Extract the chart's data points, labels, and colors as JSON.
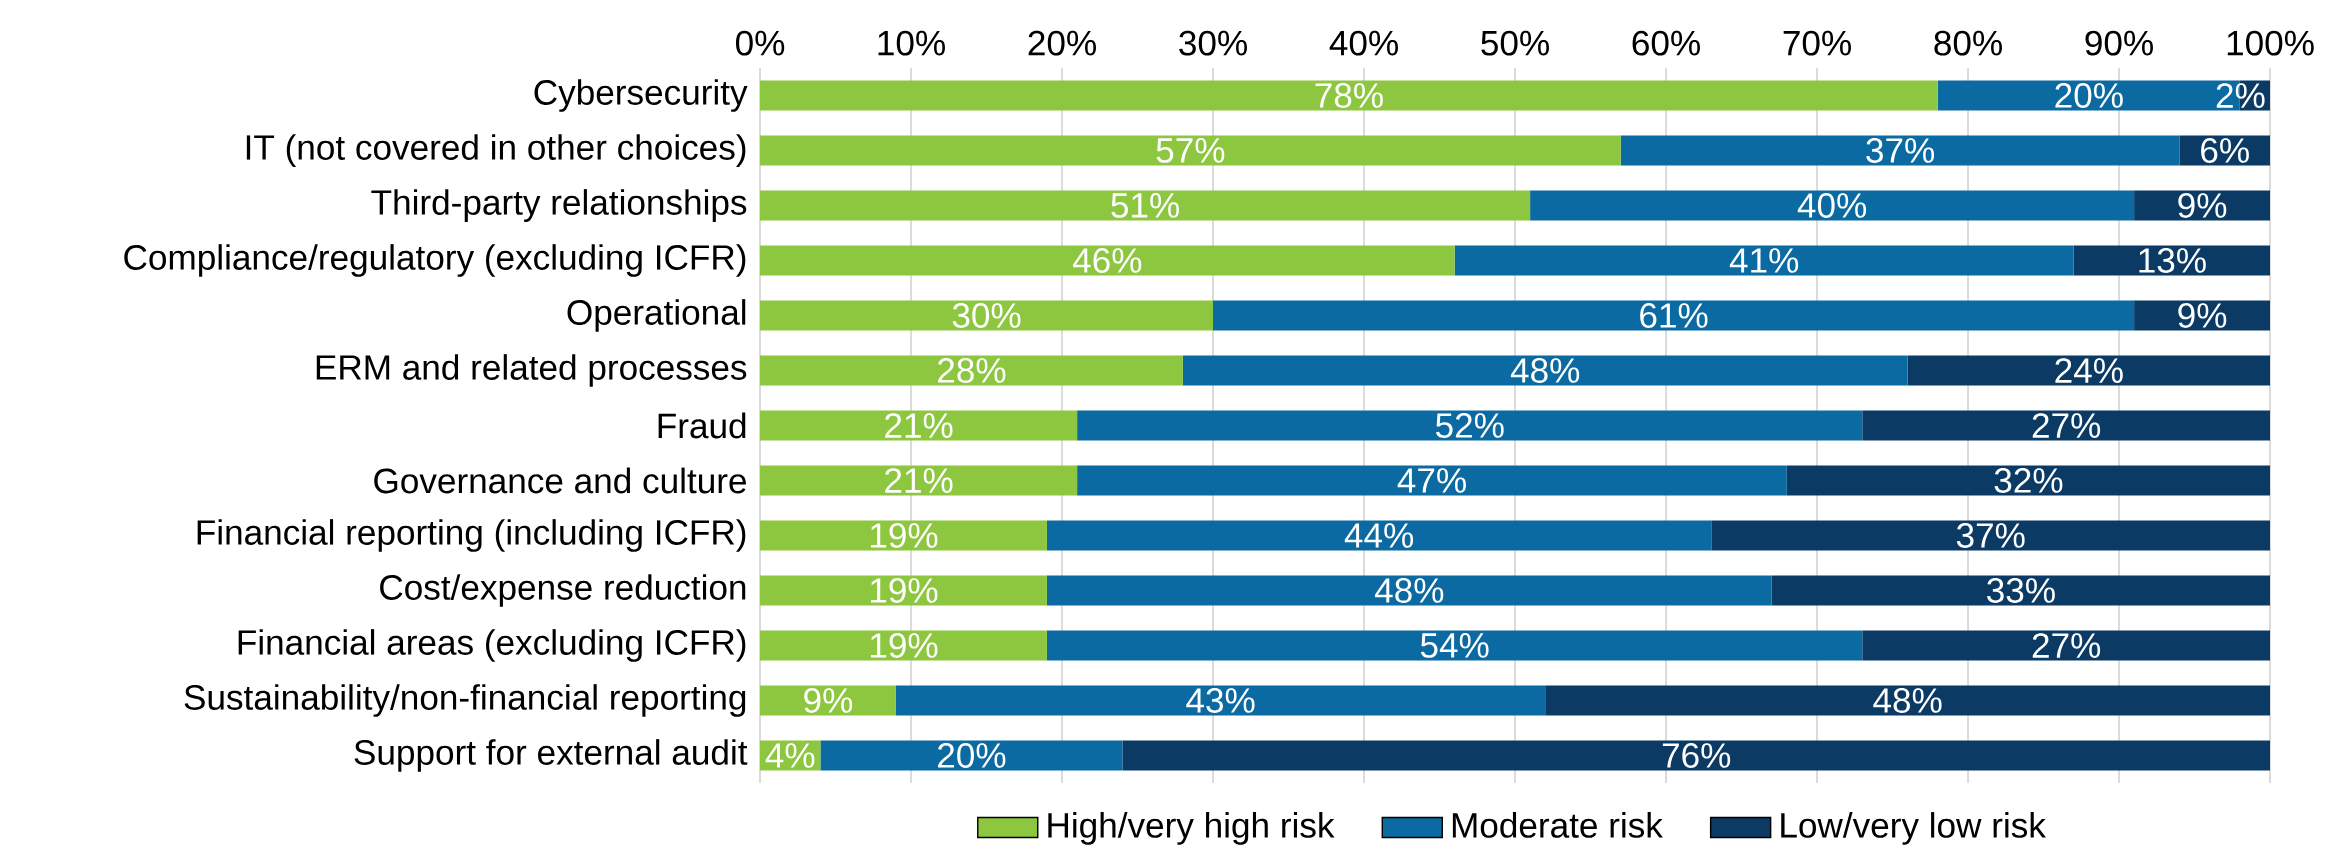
{
  "chart_data": {
    "type": "bar",
    "orientation": "horizontal",
    "stacked": true,
    "categories": [
      "Cybersecurity",
      "IT (not covered in other choices)",
      "Third-party relationships",
      "Compliance/regulatory (excluding ICFR)",
      "Operational",
      "ERM and related processes",
      "Fraud",
      "Governance and culture",
      "Financial reporting (including ICFR)",
      "Cost/expense reduction",
      "Financial areas (excluding ICFR)",
      "Sustainability/non-financial reporting",
      "Support for external audit"
    ],
    "series": [
      {
        "name": "High/very high risk",
        "color": "#8dc63f",
        "values": [
          78,
          57,
          51,
          46,
          30,
          28,
          21,
          21,
          19,
          19,
          19,
          9,
          4
        ],
        "value_labels": [
          "78%",
          "57%",
          "51%",
          "46%",
          "30%",
          "28%",
          "21%",
          "21%",
          "19%",
          "19%",
          "19%",
          "9%",
          "4%"
        ]
      },
      {
        "name": "Moderate risk",
        "color": "#0b6aa2",
        "values": [
          20,
          37,
          40,
          41,
          61,
          48,
          52,
          47,
          44,
          48,
          54,
          43,
          20
        ],
        "value_labels": [
          "20%",
          "37%",
          "40%",
          "41%",
          "61%",
          "48%",
          "52%",
          "47%",
          "44%",
          "48%",
          "54%",
          "43%",
          "20%"
        ]
      },
      {
        "name": "Low/very low risk",
        "color": "#0b3a64",
        "values": [
          2,
          6,
          9,
          13,
          9,
          24,
          27,
          32,
          37,
          33,
          27,
          48,
          76
        ],
        "value_labels": [
          "2%",
          "6%",
          "9%",
          "13%",
          "9%",
          "24%",
          "27%",
          "32%",
          "37%",
          "33%",
          "27%",
          "48%",
          "76%"
        ]
      }
    ],
    "xlim": [
      0,
      100
    ],
    "xticks": [
      {
        "value": 0,
        "label": "0%"
      },
      {
        "value": 10,
        "label": "10%"
      },
      {
        "value": 20,
        "label": "20%"
      },
      {
        "value": 30,
        "label": "30%"
      },
      {
        "value": 40,
        "label": "40%"
      },
      {
        "value": 50,
        "label": "50%"
      },
      {
        "value": 60,
        "label": "60%"
      },
      {
        "value": 70,
        "label": "70%"
      },
      {
        "value": 80,
        "label": "80%"
      },
      {
        "value": 90,
        "label": "90%"
      },
      {
        "value": 100,
        "label": "100%"
      }
    ],
    "grid": "x",
    "legend": "bottom"
  }
}
